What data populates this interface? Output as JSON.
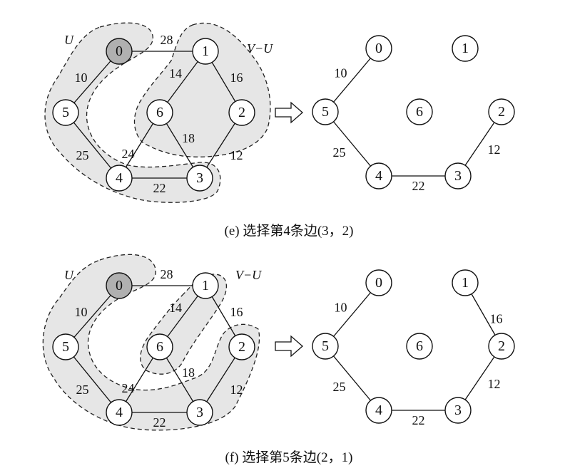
{
  "panels": [
    {
      "id": "e",
      "caption": "(e) 选择第4条边(3，2)",
      "label_u": "U",
      "label_vu": "V−U",
      "start_node": "0",
      "nodes": [
        "0",
        "1",
        "2",
        "3",
        "4",
        "5",
        "6"
      ],
      "left_edges": [
        {
          "from": "0",
          "to": "1",
          "weight": "28"
        },
        {
          "from": "0",
          "to": "5",
          "weight": "10"
        },
        {
          "from": "1",
          "to": "6",
          "weight": "14"
        },
        {
          "from": "1",
          "to": "2",
          "weight": "16"
        },
        {
          "from": "5",
          "to": "4",
          "weight": "25"
        },
        {
          "from": "6",
          "to": "4",
          "weight": "24"
        },
        {
          "from": "6",
          "to": "3",
          "weight": "18"
        },
        {
          "from": "2",
          "to": "3",
          "weight": "12"
        },
        {
          "from": "4",
          "to": "3",
          "weight": "22"
        }
      ],
      "right_edges": [
        {
          "from": "0",
          "to": "5",
          "weight": "10"
        },
        {
          "from": "5",
          "to": "4",
          "weight": "25"
        },
        {
          "from": "4",
          "to": "3",
          "weight": "22"
        },
        {
          "from": "3",
          "to": "2",
          "weight": "12"
        }
      ]
    },
    {
      "id": "f",
      "caption": "(f) 选择第5条边(2，1)",
      "label_u": "U",
      "label_vu": "V−U",
      "start_node": "0",
      "nodes": [
        "0",
        "1",
        "2",
        "3",
        "4",
        "5",
        "6"
      ],
      "left_edges": [
        {
          "from": "0",
          "to": "1",
          "weight": "28"
        },
        {
          "from": "0",
          "to": "5",
          "weight": "10"
        },
        {
          "from": "1",
          "to": "6",
          "weight": "14"
        },
        {
          "from": "1",
          "to": "2",
          "weight": "16"
        },
        {
          "from": "5",
          "to": "4",
          "weight": "25"
        },
        {
          "from": "6",
          "to": "4",
          "weight": "24"
        },
        {
          "from": "6",
          "to": "3",
          "weight": "18"
        },
        {
          "from": "2",
          "to": "3",
          "weight": "12"
        },
        {
          "from": "4",
          "to": "3",
          "weight": "22"
        }
      ],
      "right_edges": [
        {
          "from": "0",
          "to": "5",
          "weight": "10"
        },
        {
          "from": "5",
          "to": "4",
          "weight": "25"
        },
        {
          "from": "4",
          "to": "3",
          "weight": "22"
        },
        {
          "from": "3",
          "to": "2",
          "weight": "12"
        },
        {
          "from": "2",
          "to": "1",
          "weight": "16"
        }
      ]
    }
  ]
}
